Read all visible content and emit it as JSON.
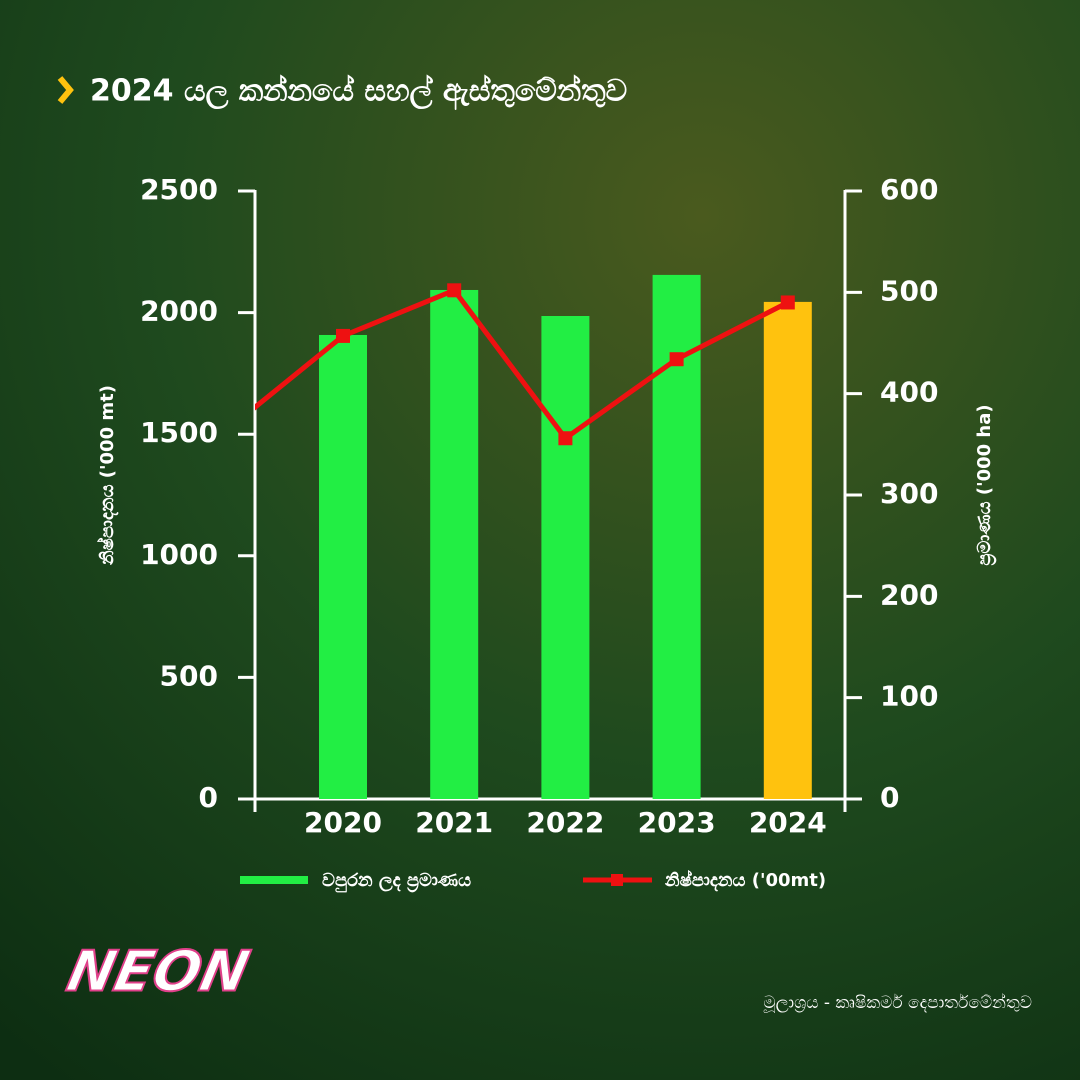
{
  "chart_data": {
    "type": "bar-line",
    "title": "2024 යල කන්නයේ සහල් ඇස්තුමේන්තුව",
    "y_label": "නිෂ්පාදනය ('000 mt)",
    "y2_label": "ප්‍රමාණය  ('000 ha)",
    "categories": [
      null,
      "2020",
      "2021",
      "2022",
      "2023",
      "2024"
    ],
    "series": [
      {
        "name": "වපුරන ලද ප්‍රමාණය",
        "type": "bar",
        "color": "#22ee44",
        "colors": [
          null,
          "#22ee44",
          "#22ee44",
          "#22ee44",
          "#22ee44",
          "#ffc20e"
        ],
        "values": [
          null,
          1908,
          2093,
          1986,
          2155,
          2044
        ]
      },
      {
        "name": "නිෂ්පාදනය ('00mt)",
        "type": "line",
        "axis": "y2",
        "color": "#ee1111",
        "values": [
          368,
          457,
          502,
          356,
          434,
          490
        ]
      }
    ],
    "ylim": [
      0,
      2500
    ],
    "yticks": [
      0,
      500,
      1000,
      1500,
      2000,
      2500
    ],
    "y2lim": [
      0,
      600
    ],
    "y2ticks": [
      0,
      100,
      200,
      300,
      400,
      500,
      600
    ],
    "logo": "NEON",
    "source": "මූලාශ්‍රය - කෘෂිකර්ම දෙපාර්තමේන්තුව"
  }
}
